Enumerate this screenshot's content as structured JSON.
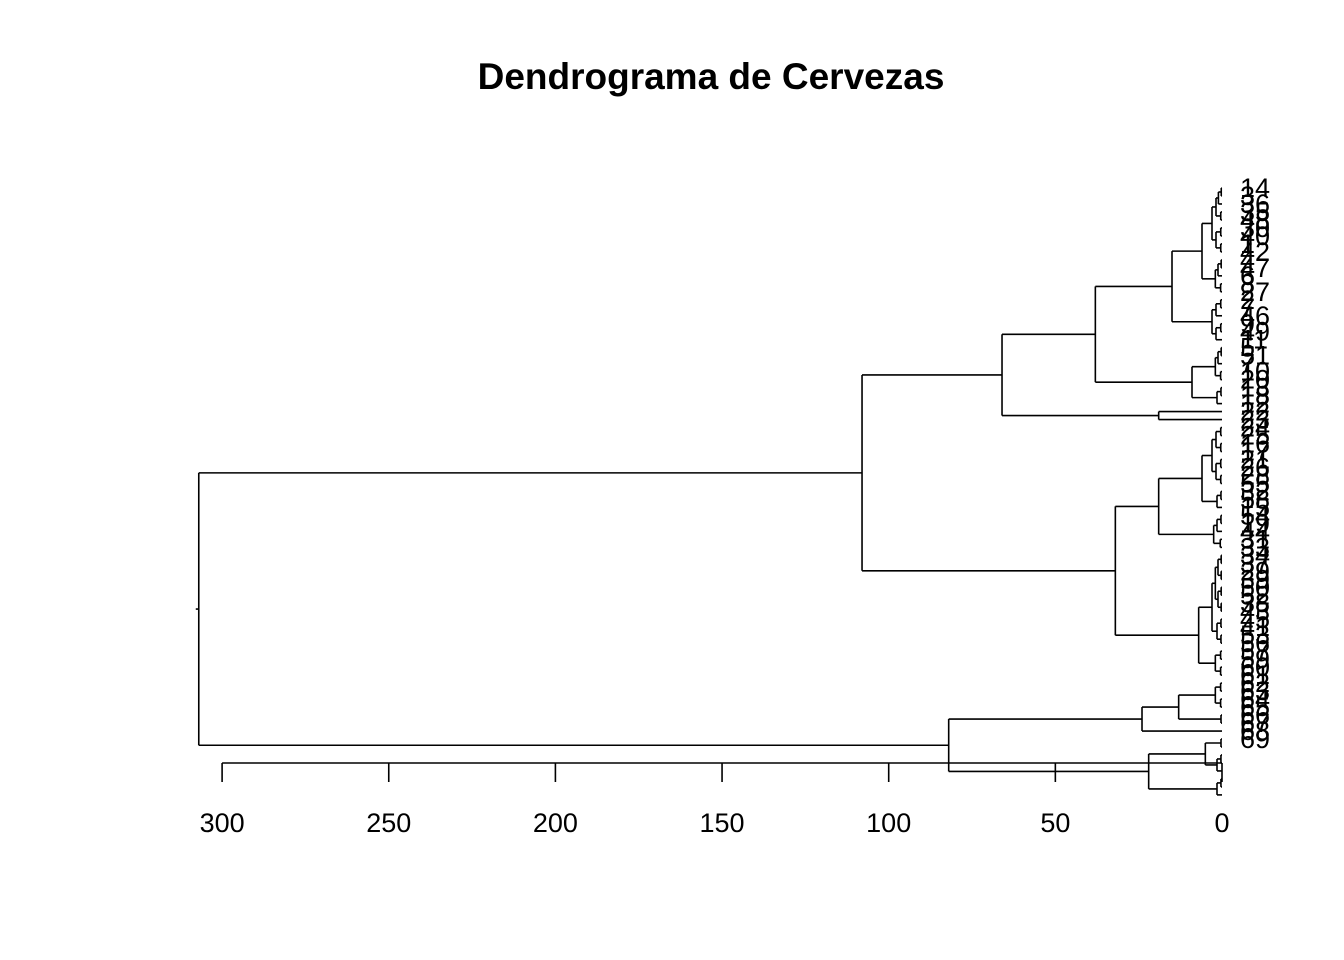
{
  "chart_data": {
    "type": "dendrogram",
    "orientation": "horizontal",
    "title": "Dendrograma de Cervezas",
    "xlabel": "",
    "ylabel": "",
    "xlim": [
      300,
      0
    ],
    "x_ticks": [
      300,
      250,
      200,
      150,
      100,
      50,
      0
    ],
    "leaves": [
      "14",
      "3",
      "36",
      "35",
      "48",
      "30",
      "40",
      "1",
      "42",
      "4",
      "47",
      "6",
      "8",
      "27",
      "2",
      "7",
      "46",
      "9",
      "49",
      "11",
      "5",
      "51",
      "7",
      "10",
      "20",
      "13",
      "18",
      "12",
      "22",
      "23",
      "24",
      "25",
      "16",
      "17",
      "21",
      "26",
      "28",
      "55",
      "32",
      "58",
      "15",
      "54",
      "19",
      "44",
      "31",
      "33",
      "34",
      "37",
      "29",
      "39",
      "50",
      "52",
      "38",
      "43",
      "45",
      "41",
      "53",
      "56",
      "57",
      "59",
      "60",
      "61",
      "62",
      "63",
      "64",
      "65",
      "66",
      "67",
      "68",
      "69"
    ],
    "visible_leaf_labels": [
      "14",
      "36",
      "35",
      "48",
      "30",
      "40",
      "42",
      "47",
      "27",
      "46",
      "49",
      "51",
      "10",
      "18",
      "22",
      "24",
      "28",
      "58",
      "54",
      "44",
      "37",
      "29",
      "50",
      "52",
      "43",
      "45",
      "41",
      "53",
      "56",
      "59",
      "62",
      "63",
      "64",
      "65",
      "66",
      "67",
      "68",
      "69"
    ],
    "merge_heights": [
      307,
      108,
      82,
      66,
      38,
      32,
      24,
      22,
      19,
      19,
      15,
      9,
      6,
      5,
      5,
      3,
      3
    ]
  }
}
